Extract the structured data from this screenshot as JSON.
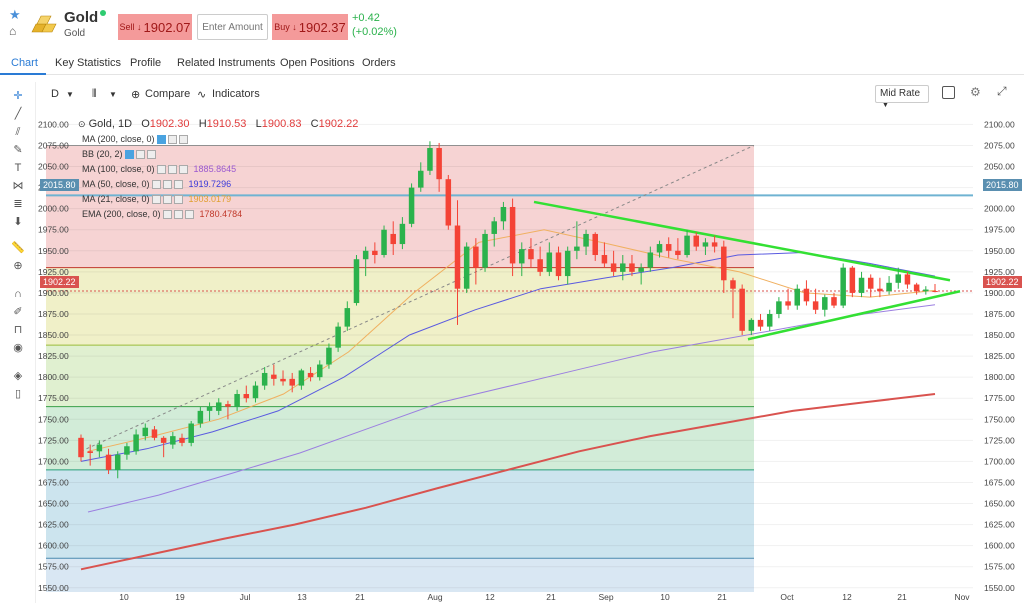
{
  "header": {
    "name": "Gold",
    "subtitle": "Gold",
    "sell_label": "Sell ↓",
    "sell_price": "1902.07",
    "amount_placeholder": "Enter Amount",
    "buy_label": "Buy ↓",
    "buy_price": "1902.37",
    "change_abs": "+0.42",
    "change_pct": "(+0.02%)"
  },
  "tabs": [
    "Chart",
    "Key Statistics",
    "Profile",
    "Related Instruments",
    "Open Positions",
    "Orders"
  ],
  "toolbar": {
    "interval": "D",
    "compare": "Compare",
    "indicators": "Indicators",
    "price_source": "Mid Rate"
  },
  "ohlc": {
    "symbol": "Gold, 1D",
    "open_label": "O",
    "open": "1902.30",
    "high_label": "H",
    "high": "1910.53",
    "low_label": "L",
    "low": "1900.83",
    "close_label": "C",
    "close": "1902.22"
  },
  "indicators": [
    {
      "label": "MA (200, close, 0)",
      "value": "",
      "color": "#333333"
    },
    {
      "label": "BB (20, 2)",
      "value": "",
      "color": "#333333"
    },
    {
      "label": "MA (100, close, 0)",
      "value": "1885.8645",
      "color": "#9b59d0"
    },
    {
      "label": "MA (50, close, 0)",
      "value": "1919.7296",
      "color": "#3a3ad9"
    },
    {
      "label": "MA (21, close, 0)",
      "value": "1903.0179",
      "color": "#e0a030"
    },
    {
      "label": "EMA (200, close, 0)",
      "value": "1780.4784",
      "color": "#c0392b"
    }
  ],
  "price_labels": {
    "hline": "2015.80",
    "current": "1902.22"
  },
  "colors": {
    "up": "#2bb24c",
    "down": "#f44336",
    "accent": "#2a7bd5",
    "trendline": "#33e033",
    "ema200": "#d9534f",
    "ma100": "#9b7fe0",
    "ma50": "#5a5ae0",
    "ma21": "#f0b060"
  },
  "chart_data": {
    "type": "candlestick",
    "y_ticks": [
      2100,
      2075,
      2050,
      2025,
      2000,
      1975,
      1950,
      1925,
      1900,
      1875,
      1850,
      1825,
      1800,
      1775,
      1750,
      1725,
      1700,
      1675,
      1650,
      1625,
      1600,
      1575,
      1550
    ],
    "ylim": [
      1545,
      2110
    ],
    "x_tick_labels": [
      "10",
      "19",
      "Jul",
      "13",
      "21",
      "Aug",
      "12",
      "21",
      "Sep",
      "10",
      "21",
      "Oct",
      "12",
      "21",
      "Nov"
    ],
    "candles": [
      {
        "o": 1728,
        "h": 1732,
        "l": 1700,
        "c": 1705
      },
      {
        "o": 1712,
        "h": 1720,
        "l": 1695,
        "c": 1710
      },
      {
        "o": 1712,
        "h": 1725,
        "l": 1705,
        "c": 1720
      },
      {
        "o": 1708,
        "h": 1715,
        "l": 1685,
        "c": 1690
      },
      {
        "o": 1690,
        "h": 1712,
        "l": 1680,
        "c": 1708
      },
      {
        "o": 1708,
        "h": 1722,
        "l": 1702,
        "c": 1718
      },
      {
        "o": 1712,
        "h": 1738,
        "l": 1708,
        "c": 1732
      },
      {
        "o": 1730,
        "h": 1745,
        "l": 1725,
        "c": 1740
      },
      {
        "o": 1738,
        "h": 1742,
        "l": 1725,
        "c": 1728
      },
      {
        "o": 1728,
        "h": 1730,
        "l": 1705,
        "c": 1722
      },
      {
        "o": 1720,
        "h": 1735,
        "l": 1715,
        "c": 1730
      },
      {
        "o": 1728,
        "h": 1733,
        "l": 1718,
        "c": 1722
      },
      {
        "o": 1722,
        "h": 1748,
        "l": 1718,
        "c": 1745
      },
      {
        "o": 1745,
        "h": 1765,
        "l": 1740,
        "c": 1760
      },
      {
        "o": 1760,
        "h": 1770,
        "l": 1748,
        "c": 1765
      },
      {
        "o": 1760,
        "h": 1775,
        "l": 1755,
        "c": 1770
      },
      {
        "o": 1768,
        "h": 1772,
        "l": 1750,
        "c": 1765
      },
      {
        "o": 1765,
        "h": 1785,
        "l": 1760,
        "c": 1780
      },
      {
        "o": 1780,
        "h": 1790,
        "l": 1770,
        "c": 1775
      },
      {
        "o": 1775,
        "h": 1795,
        "l": 1770,
        "c": 1790
      },
      {
        "o": 1790,
        "h": 1812,
        "l": 1785,
        "c": 1805
      },
      {
        "o": 1803,
        "h": 1815,
        "l": 1790,
        "c": 1798
      },
      {
        "o": 1798,
        "h": 1808,
        "l": 1790,
        "c": 1795
      },
      {
        "o": 1798,
        "h": 1805,
        "l": 1782,
        "c": 1790
      },
      {
        "o": 1790,
        "h": 1810,
        "l": 1785,
        "c": 1808
      },
      {
        "o": 1805,
        "h": 1812,
        "l": 1795,
        "c": 1800
      },
      {
        "o": 1800,
        "h": 1820,
        "l": 1796,
        "c": 1815
      },
      {
        "o": 1815,
        "h": 1840,
        "l": 1810,
        "c": 1835
      },
      {
        "o": 1835,
        "h": 1865,
        "l": 1830,
        "c": 1860
      },
      {
        "o": 1860,
        "h": 1890,
        "l": 1855,
        "c": 1882
      },
      {
        "o": 1888,
        "h": 1945,
        "l": 1885,
        "c": 1940
      },
      {
        "o": 1940,
        "h": 1955,
        "l": 1920,
        "c": 1950
      },
      {
        "o": 1950,
        "h": 1960,
        "l": 1935,
        "c": 1945
      },
      {
        "o": 1945,
        "h": 1980,
        "l": 1942,
        "c": 1975
      },
      {
        "o": 1970,
        "h": 1985,
        "l": 1945,
        "c": 1958
      },
      {
        "o": 1958,
        "h": 1990,
        "l": 1952,
        "c": 1982
      },
      {
        "o": 1982,
        "h": 2030,
        "l": 1978,
        "c": 2025
      },
      {
        "o": 2025,
        "h": 2055,
        "l": 2020,
        "c": 2045
      },
      {
        "o": 2045,
        "h": 2080,
        "l": 2040,
        "c": 2072
      },
      {
        "o": 2072,
        "h": 2078,
        "l": 2020,
        "c": 2035
      },
      {
        "o": 2035,
        "h": 2040,
        "l": 1975,
        "c": 1980
      },
      {
        "o": 1980,
        "h": 2010,
        "l": 1862,
        "c": 1905
      },
      {
        "o": 1905,
        "h": 1960,
        "l": 1900,
        "c": 1955
      },
      {
        "o": 1955,
        "h": 1965,
        "l": 1910,
        "c": 1930
      },
      {
        "o": 1930,
        "h": 1975,
        "l": 1925,
        "c": 1970
      },
      {
        "o": 1970,
        "h": 1990,
        "l": 1955,
        "c": 1985
      },
      {
        "o": 1985,
        "h": 2008,
        "l": 1975,
        "c": 2002
      },
      {
        "o": 2002,
        "h": 2012,
        "l": 1920,
        "c": 1935
      },
      {
        "o": 1935,
        "h": 1960,
        "l": 1920,
        "c": 1952
      },
      {
        "o": 1952,
        "h": 1965,
        "l": 1930,
        "c": 1940
      },
      {
        "o": 1940,
        "h": 1955,
        "l": 1920,
        "c": 1925
      },
      {
        "o": 1925,
        "h": 1960,
        "l": 1920,
        "c": 1948
      },
      {
        "o": 1948,
        "h": 1955,
        "l": 1915,
        "c": 1920
      },
      {
        "o": 1920,
        "h": 1955,
        "l": 1910,
        "c": 1950
      },
      {
        "o": 1950,
        "h": 1985,
        "l": 1940,
        "c": 1955
      },
      {
        "o": 1955,
        "h": 1975,
        "l": 1945,
        "c": 1970
      },
      {
        "o": 1970,
        "h": 1972,
        "l": 1938,
        "c": 1945
      },
      {
        "o": 1945,
        "h": 1960,
        "l": 1930,
        "c": 1935
      },
      {
        "o": 1935,
        "h": 1950,
        "l": 1920,
        "c": 1925
      },
      {
        "o": 1925,
        "h": 1945,
        "l": 1915,
        "c": 1935
      },
      {
        "o": 1935,
        "h": 1945,
        "l": 1920,
        "c": 1925
      },
      {
        "o": 1925,
        "h": 1935,
        "l": 1910,
        "c": 1930
      },
      {
        "o": 1930,
        "h": 1955,
        "l": 1925,
        "c": 1948
      },
      {
        "o": 1948,
        "h": 1962,
        "l": 1942,
        "c": 1958
      },
      {
        "o": 1958,
        "h": 1966,
        "l": 1942,
        "c": 1950
      },
      {
        "o": 1950,
        "h": 1965,
        "l": 1940,
        "c": 1945
      },
      {
        "o": 1945,
        "h": 1975,
        "l": 1942,
        "c": 1968
      },
      {
        "o": 1968,
        "h": 1972,
        "l": 1950,
        "c": 1955
      },
      {
        "o": 1955,
        "h": 1965,
        "l": 1945,
        "c": 1960
      },
      {
        "o": 1960,
        "h": 1968,
        "l": 1948,
        "c": 1955
      },
      {
        "o": 1955,
        "h": 1962,
        "l": 1900,
        "c": 1915
      },
      {
        "o": 1915,
        "h": 1918,
        "l": 1870,
        "c": 1905
      },
      {
        "o": 1905,
        "h": 1910,
        "l": 1850,
        "c": 1855
      },
      {
        "o": 1855,
        "h": 1870,
        "l": 1850,
        "c": 1868
      },
      {
        "o": 1868,
        "h": 1875,
        "l": 1855,
        "c": 1860
      },
      {
        "o": 1860,
        "h": 1880,
        "l": 1855,
        "c": 1875
      },
      {
        "o": 1875,
        "h": 1895,
        "l": 1870,
        "c": 1890
      },
      {
        "o": 1890,
        "h": 1905,
        "l": 1880,
        "c": 1885
      },
      {
        "o": 1885,
        "h": 1910,
        "l": 1880,
        "c": 1905
      },
      {
        "o": 1905,
        "h": 1915,
        "l": 1885,
        "c": 1890
      },
      {
        "o": 1890,
        "h": 1905,
        "l": 1875,
        "c": 1880
      },
      {
        "o": 1880,
        "h": 1898,
        "l": 1872,
        "c": 1895
      },
      {
        "o": 1895,
        "h": 1900,
        "l": 1882,
        "c": 1885
      },
      {
        "o": 1885,
        "h": 1935,
        "l": 1882,
        "c": 1930
      },
      {
        "o": 1930,
        "h": 1932,
        "l": 1895,
        "c": 1900
      },
      {
        "o": 1900,
        "h": 1925,
        "l": 1895,
        "c": 1918
      },
      {
        "o": 1918,
        "h": 1922,
        "l": 1895,
        "c": 1905
      },
      {
        "o": 1905,
        "h": 1918,
        "l": 1895,
        "c": 1902
      },
      {
        "o": 1902,
        "h": 1920,
        "l": 1898,
        "c": 1912
      },
      {
        "o": 1912,
        "h": 1930,
        "l": 1905,
        "c": 1922
      },
      {
        "o": 1922,
        "h": 1925,
        "l": 1905,
        "c": 1910
      },
      {
        "o": 1910,
        "h": 1912,
        "l": 1898,
        "c": 1902
      },
      {
        "o": 1902,
        "h": 1908,
        "l": 1898,
        "c": 1904
      },
      {
        "o": 1902.3,
        "h": 1910.53,
        "l": 1900.83,
        "c": 1902.22
      }
    ],
    "ema200": [
      1572,
      1590,
      1608,
      1625,
      1645,
      1668,
      1690,
      1712,
      1730,
      1745,
      1760,
      1770,
      1780
    ],
    "ma100": [
      1640,
      1660,
      1685,
      1710,
      1740,
      1770,
      1790,
      1810,
      1830,
      1845,
      1860,
      1875,
      1886
    ],
    "ma50": [
      1700,
      1715,
      1735,
      1760,
      1800,
      1850,
      1880,
      1905,
      1918,
      1930,
      1945,
      1948,
      1935,
      1920
    ],
    "ma21": [
      1712,
      1730,
      1750,
      1780,
      1830,
      1900,
      1960,
      1975,
      1958,
      1940,
      1925,
      1900,
      1895,
      1903
    ],
    "fib_levels": [
      2075,
      1930,
      1838,
      1765,
      1690,
      1585
    ]
  }
}
